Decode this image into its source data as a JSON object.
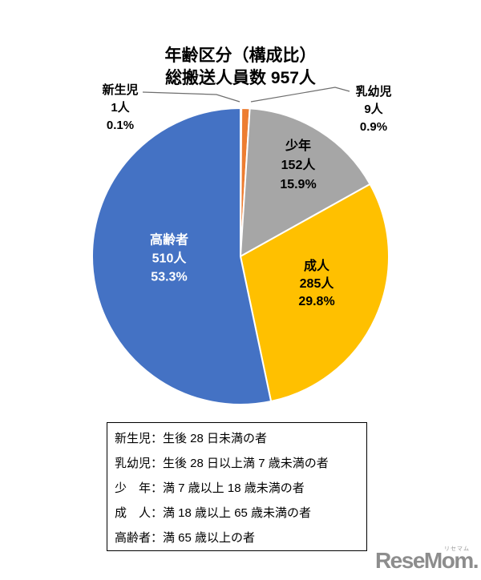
{
  "title": {
    "line1": "年齢区分（構成比）",
    "line2": "総搬送人員数 957人"
  },
  "chart_data": {
    "type": "pie",
    "title": "年齢区分（構成比）",
    "subtitle": "総搬送人員数 957人",
    "total": 957,
    "unit": "人",
    "start_angle_deg": 0,
    "direction": "clockwise",
    "legend_position": "none",
    "slices": [
      {
        "id": "newborn",
        "label": "新生児",
        "value": 1,
        "count_label": "1人",
        "pct": 0.1,
        "pct_label": "0.1%",
        "color": "#4472C4",
        "label_outside": true
      },
      {
        "id": "infant",
        "label": "乳幼児",
        "value": 9,
        "count_label": "9人",
        "pct": 0.9,
        "pct_label": "0.9%",
        "color": "#ED7D31",
        "label_outside": true
      },
      {
        "id": "youth",
        "label": "少年",
        "value": 152,
        "count_label": "152人",
        "pct": 15.9,
        "pct_label": "15.9%",
        "color": "#A6A6A6",
        "label_outside": false
      },
      {
        "id": "adult",
        "label": "成人",
        "value": 285,
        "count_label": "285人",
        "pct": 29.8,
        "pct_label": "29.8%",
        "color": "#FFC000",
        "label_outside": false
      },
      {
        "id": "elderly",
        "label": "高齢者",
        "value": 510,
        "count_label": "510人",
        "pct": 53.3,
        "pct_label": "53.3%",
        "color": "#4472C4",
        "label_outside": false
      }
    ]
  },
  "legend": {
    "rows": [
      "新生児：生後 28 日未満の者",
      "乳幼児：生後 28 日以上満 7 歳未満の者",
      "少　年：満 7 歳以上 18 歳未満の者",
      "成　人：満 18 歳以上 65 歳未満の者",
      "高齢者：満 65 歳以上の者"
    ]
  },
  "logo": {
    "ruby": "リセマム",
    "text": "ReseMom."
  }
}
